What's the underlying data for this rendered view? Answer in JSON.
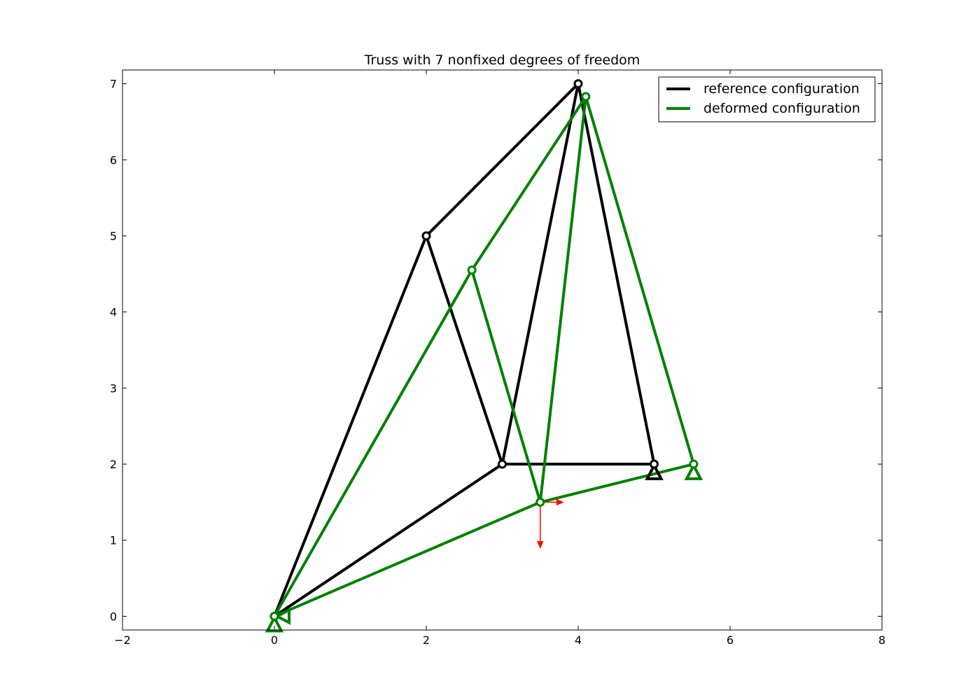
{
  "chart_data": {
    "type": "line",
    "title": "Truss with 7 nonfixed degrees of freedom",
    "xlabel": "",
    "ylabel": "",
    "xlim": [
      -2,
      8
    ],
    "ylim": [
      -0.18,
      7.18
    ],
    "x_ticks": [
      -2,
      0,
      2,
      4,
      6,
      8
    ],
    "y_ticks": [
      0,
      1,
      2,
      3,
      4,
      5,
      6,
      7
    ],
    "x_tick_labels": [
      "−2",
      "0",
      "2",
      "4",
      "6",
      "8"
    ],
    "y_tick_labels": [
      "0",
      "1",
      "2",
      "3",
      "4",
      "5",
      "6",
      "7"
    ],
    "grid": false,
    "legend_position": "top-right",
    "series": [
      {
        "name": "reference configuration",
        "color": "#000000",
        "nodes": [
          [
            0,
            0
          ],
          [
            2,
            5
          ],
          [
            4,
            7
          ],
          [
            3,
            2
          ],
          [
            5,
            2
          ]
        ],
        "members": [
          [
            0,
            1
          ],
          [
            1,
            2
          ],
          [
            0,
            3
          ],
          [
            1,
            3
          ],
          [
            3,
            2
          ],
          [
            2,
            4
          ],
          [
            3,
            4
          ]
        ],
        "supports": [
          {
            "node": 4,
            "type": "triangle-up"
          }
        ]
      },
      {
        "name": "deformed configuration",
        "color": "#008000",
        "nodes": [
          [
            0,
            0
          ],
          [
            2.6,
            4.55
          ],
          [
            4.1,
            6.83
          ],
          [
            3.5,
            1.5
          ],
          [
            5.52,
            2.0
          ]
        ],
        "members": [
          [
            0,
            1
          ],
          [
            1,
            2
          ],
          [
            0,
            3
          ],
          [
            1,
            3
          ],
          [
            3,
            2
          ],
          [
            2,
            4
          ],
          [
            3,
            4
          ]
        ],
        "supports": [
          {
            "node": 0,
            "type": "triangle-up"
          },
          {
            "node": 0,
            "type": "triangle-left"
          },
          {
            "node": 4,
            "type": "triangle-up"
          }
        ]
      }
    ],
    "load_arrows": {
      "color": "#ff0000",
      "origin": [
        3.5,
        1.5
      ],
      "vectors": [
        [
          0.3,
          0.0
        ],
        [
          0.0,
          -0.6
        ]
      ]
    }
  }
}
